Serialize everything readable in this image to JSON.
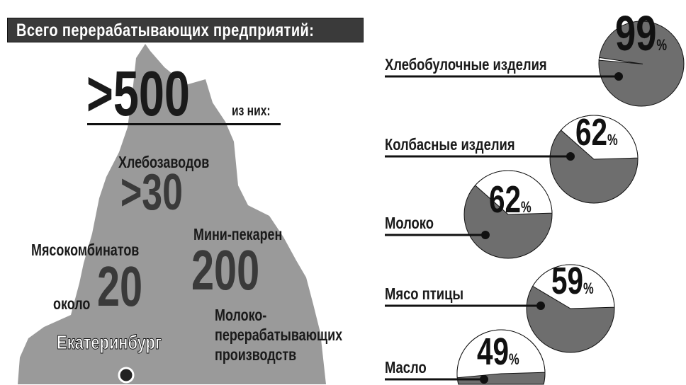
{
  "header": {
    "title": "Всего  перерабатывающих предприятий:"
  },
  "map": {
    "total_value": ">500",
    "total_suffix": "из них:",
    "bakeries_label": "Хлебозаводов",
    "bakeries_value": ">30",
    "meat_label": "Мясокомбинатов",
    "meat_prefix": "около",
    "meat_value": "20",
    "mini_label": "Мини-пекарен",
    "mini_value": "200",
    "dairy_label_1": "Молоко-",
    "dairy_label_2": "перерабатывающих",
    "dairy_label_3": "производств",
    "city": "Екатеринбург",
    "fill_color": "#9a9a9a"
  },
  "chart_data": {
    "type": "pie",
    "unit": "%",
    "colors": {
      "share": "#6e6e6e",
      "rest": "#ffffff"
    },
    "items": [
      {
        "label": "Хлебобулочные изделия",
        "value": 99,
        "value_text": "99"
      },
      {
        "label": "Колбасные изделия",
        "value": 62,
        "value_text": "62"
      },
      {
        "label": "Молоко",
        "value": 62,
        "value_text": "62"
      },
      {
        "label": "Мясо птицы",
        "value": 59,
        "value_text": "59"
      },
      {
        "label": "Масло",
        "value": 49,
        "value_text": "49"
      }
    ]
  }
}
